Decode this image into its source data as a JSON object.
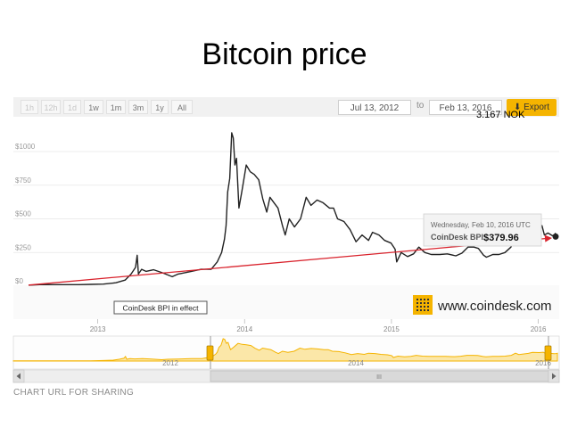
{
  "slide": {
    "title": "Bitcoin price"
  },
  "toolbar": {
    "ranges": [
      "1h",
      "12h",
      "1d",
      "1w",
      "1m",
      "3m",
      "1y",
      "All"
    ],
    "from": "Jul 13, 2012",
    "to_label": "to",
    "to": "Feb 13, 2016",
    "export_label": "Export",
    "export_icon": "download-arrow-icon"
  },
  "annotation": {
    "rate": "3.167  NOK"
  },
  "tooltip": {
    "date": "Wednesday, Feb 10, 2016 UTC",
    "label": "CoinDesk BPI:",
    "value": "$379.96"
  },
  "event_flag": "CoinDesk BPI in effect",
  "brand": {
    "text": "www.coindesk.com",
    "color": "#f5b400"
  },
  "share_label": "CHART URL FOR SHARING",
  "navigator": {
    "years": [
      "2012",
      "2014",
      "2016"
    ],
    "handle_label": "III"
  },
  "chart_data": {
    "type": "line",
    "title": "Bitcoin price",
    "x_ticks": [
      "2013",
      "2014",
      "2015",
      "2016"
    ],
    "y_ticks": [
      "$0",
      "$250",
      "$500",
      "$750",
      "$1000"
    ],
    "ylim": [
      0,
      1200
    ],
    "grid": true,
    "colors": {
      "price": "#222222",
      "trend": "#d9232d",
      "navigator_fill": "#fbe7a8",
      "navigator_line": "#f5b400"
    },
    "series": [
      {
        "values": [
          [
            "2012-07-13",
            7.5
          ],
          [
            "2012-08-15",
            12
          ],
          [
            "2012-09-15",
            11
          ],
          [
            "2012-10-15",
            11.5
          ],
          [
            "2012-11-15",
            11
          ],
          [
            "2012-12-15",
            13
          ],
          [
            "2013-01-15",
            15
          ],
          [
            "2013-02-15",
            25
          ],
          [
            "2013-03-10",
            45
          ],
          [
            "2013-03-25",
            90
          ],
          [
            "2013-04-05",
            140
          ],
          [
            "2013-04-09",
            230
          ],
          [
            "2013-04-12",
            90
          ],
          [
            "2013-04-20",
            125
          ],
          [
            "2013-05-01",
            110
          ],
          [
            "2013-05-20",
            122
          ],
          [
            "2013-06-10",
            100
          ],
          [
            "2013-07-05",
            70
          ],
          [
            "2013-07-20",
            90
          ],
          [
            "2013-08-15",
            105
          ],
          [
            "2013-09-15",
            125
          ],
          [
            "2013-10-10",
            125
          ],
          [
            "2013-10-25",
            180
          ],
          [
            "2013-11-05",
            250
          ],
          [
            "2013-11-12",
            350
          ],
          [
            "2013-11-16",
            450
          ],
          [
            "2013-11-20",
            700
          ],
          [
            "2013-11-25",
            800
          ],
          [
            "2013-11-30",
            1140
          ],
          [
            "2013-12-04",
            1100
          ],
          [
            "2013-12-08",
            900
          ],
          [
            "2013-12-12",
            950
          ],
          [
            "2013-12-18",
            580
          ],
          [
            "2013-12-25",
            700
          ],
          [
            "2014-01-05",
            900
          ],
          [
            "2014-01-15",
            850
          ],
          [
            "2014-01-25",
            830
          ],
          [
            "2014-02-05",
            790
          ],
          [
            "2014-02-15",
            650
          ],
          [
            "2014-02-25",
            550
          ],
          [
            "2014-03-05",
            660
          ],
          [
            "2014-03-15",
            620
          ],
          [
            "2014-03-25",
            580
          ],
          [
            "2014-04-05",
            450
          ],
          [
            "2014-04-12",
            380
          ],
          [
            "2014-04-22",
            500
          ],
          [
            "2014-05-05",
            440
          ],
          [
            "2014-05-20",
            500
          ],
          [
            "2014-06-03",
            660
          ],
          [
            "2014-06-15",
            600
          ],
          [
            "2014-06-30",
            640
          ],
          [
            "2014-07-15",
            620
          ],
          [
            "2014-07-31",
            580
          ],
          [
            "2014-08-10",
            580
          ],
          [
            "2014-08-20",
            500
          ],
          [
            "2014-09-05",
            480
          ],
          [
            "2014-09-20",
            420
          ],
          [
            "2014-10-05",
            330
          ],
          [
            "2014-10-20",
            380
          ],
          [
            "2014-11-05",
            340
          ],
          [
            "2014-11-15",
            400
          ],
          [
            "2014-12-01",
            380
          ],
          [
            "2014-12-15",
            340
          ],
          [
            "2014-12-31",
            320
          ],
          [
            "2015-01-10",
            275
          ],
          [
            "2015-01-14",
            180
          ],
          [
            "2015-01-25",
            250
          ],
          [
            "2015-02-10",
            220
          ],
          [
            "2015-02-25",
            240
          ],
          [
            "2015-03-10",
            290
          ],
          [
            "2015-03-25",
            250
          ],
          [
            "2015-04-10",
            235
          ],
          [
            "2015-05-01",
            235
          ],
          [
            "2015-05-20",
            240
          ],
          [
            "2015-06-10",
            225
          ],
          [
            "2015-06-25",
            245
          ],
          [
            "2015-07-10",
            290
          ],
          [
            "2015-07-25",
            290
          ],
          [
            "2015-08-05",
            280
          ],
          [
            "2015-08-18",
            230
          ],
          [
            "2015-08-25",
            215
          ],
          [
            "2015-09-10",
            235
          ],
          [
            "2015-09-25",
            235
          ],
          [
            "2015-10-10",
            250
          ],
          [
            "2015-10-25",
            290
          ],
          [
            "2015-11-04",
            400
          ],
          [
            "2015-11-12",
            330
          ],
          [
            "2015-11-25",
            365
          ],
          [
            "2015-12-05",
            390
          ],
          [
            "2015-12-15",
            440
          ],
          [
            "2015-12-31",
            430
          ],
          [
            "2016-01-10",
            450
          ],
          [
            "2016-01-16",
            380
          ],
          [
            "2016-01-25",
            395
          ],
          [
            "2016-02-05",
            375
          ],
          [
            "2016-02-10",
            379.96
          ],
          [
            "2016-02-13",
            395
          ]
        ]
      },
      {
        "values": [
          [
            "2012-07-13",
            8
          ],
          [
            "2016-02-13",
            370
          ]
        ]
      }
    ]
  }
}
